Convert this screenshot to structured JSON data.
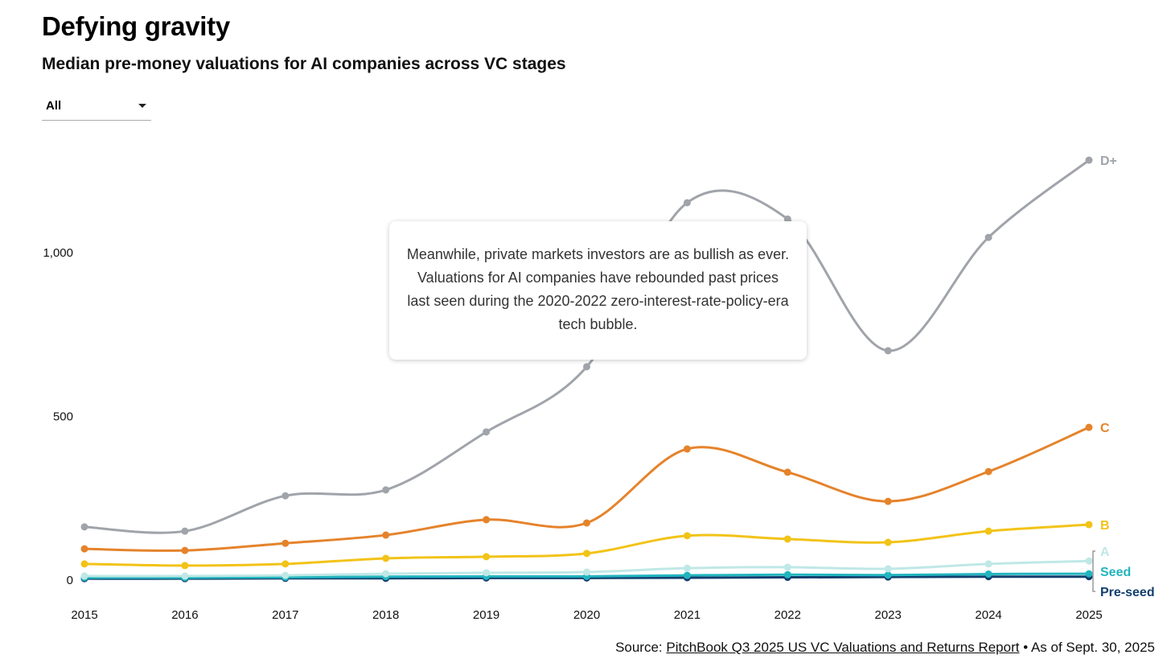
{
  "title": "Defying gravity",
  "subtitle": "Median pre-money valuations for AI companies across VC stages",
  "filter": {
    "selected": "All"
  },
  "annotation": "Meanwhile, private markets investors are as bullish as ever. Valuations for AI companies have rebounded past prices last seen during the 2020-2022 zero-interest-rate-policy-era tech bubble.",
  "source": {
    "prefix": "Source: ",
    "link": "PitchBook Q3 2025 US VC Valuations and Returns Report",
    "suffix": " • As of Sept. 30, 2025"
  },
  "chart_data": {
    "type": "line",
    "title": "Defying gravity",
    "subtitle": "Median pre-money valuations for AI companies across VC stages",
    "x": [
      2015,
      2016,
      2017,
      2018,
      2019,
      2020,
      2021,
      2022,
      2023,
      2024,
      2025
    ],
    "x_tick_labels": [
      "2015",
      "2016",
      "2017",
      "2018",
      "2019",
      "2020",
      "2021",
      "2022",
      "2023",
      "2024",
      "2025"
    ],
    "y_ticks": [
      0,
      500,
      1000
    ],
    "y_tick_labels": [
      "0",
      "500",
      "1,000"
    ],
    "ylim": [
      0,
      1300
    ],
    "grid": false,
    "legend": "direct labels at line ends (right)",
    "series": [
      {
        "name": "D+",
        "color": "#a0a4aa",
        "values": [
          160,
          147,
          255,
          273,
          450,
          649,
          1150,
          1100,
          698,
          1044,
          1280
        ]
      },
      {
        "name": "C",
        "color": "#e5832b",
        "values": [
          93,
          88,
          110,
          135,
          182,
          172,
          398,
          327,
          238,
          329,
          464
        ]
      },
      {
        "name": "B",
        "color": "#f2c318",
        "values": [
          47,
          42,
          47,
          64,
          69,
          79,
          133,
          123,
          113,
          147,
          167
        ]
      },
      {
        "name": "A",
        "color": "#bfe8e6",
        "values": [
          10,
          10,
          12,
          17,
          20,
          22,
          34,
          37,
          32,
          47,
          56
        ]
      },
      {
        "name": "Seed",
        "color": "#22b5bf",
        "values": [
          5,
          5,
          6,
          8,
          9,
          9,
          12,
          14,
          13,
          16,
          17
        ]
      },
      {
        "name": "Pre-seed",
        "color": "#123f6e",
        "values": [
          2,
          2,
          3,
          3,
          4,
          4,
          5,
          6,
          7,
          8,
          8
        ]
      }
    ]
  }
}
